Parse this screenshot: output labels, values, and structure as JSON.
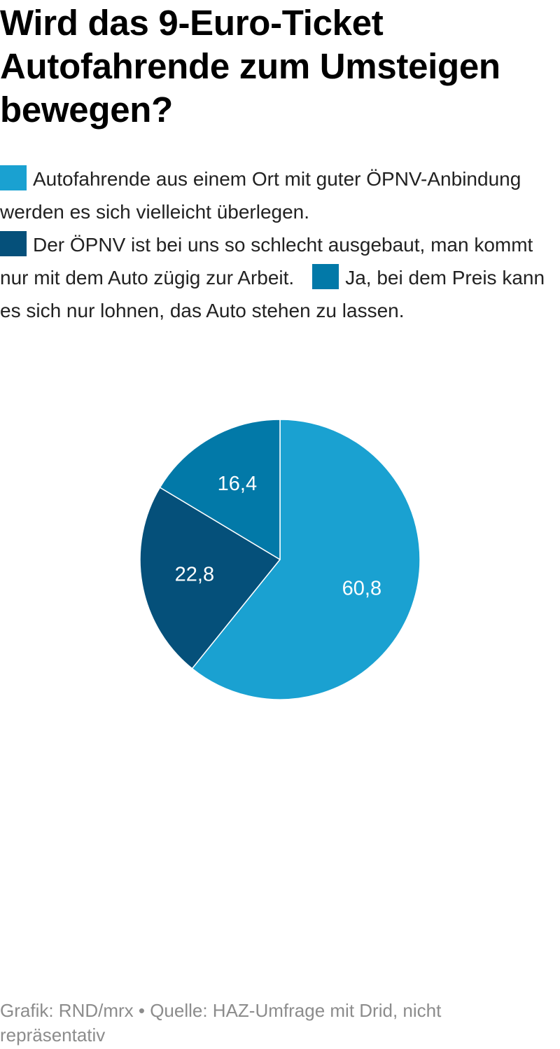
{
  "header": {
    "title": "Wird das 9-Euro-Ticket Autofahrende zum Umsteigen bewegen?"
  },
  "legend": {
    "items": [
      {
        "label": "Autofahrende aus einem Ort mit guter ÖPNV-Anbindung werden es sich vielleicht überlegen.",
        "color": "#1aa1d1"
      },
      {
        "label": "Der ÖPNV ist bei uns so schlecht ausgebaut, man kommt nur mit dem Auto zügig zur Arbeit.",
        "color": "#05507a"
      },
      {
        "label": "Ja, bei dem Preis kann es sich nur lohnen, das Auto stehen zu lassen.",
        "color": "#0279a8"
      }
    ]
  },
  "chart_data": {
    "type": "pie",
    "title": "Wird das 9-Euro-Ticket Autofahrende zum Umsteigen bewegen?",
    "slices": [
      {
        "label": "Autofahrende aus einem Ort mit guter ÖPNV-Anbindung werden es sich vielleicht überlegen.",
        "value": 60.8,
        "display": "60,8",
        "color": "#1aa1d1"
      },
      {
        "label": "Der ÖPNV ist bei uns so schlecht ausgebaut, man kommt nur mit dem Auto zügig zur Arbeit.",
        "value": 22.8,
        "display": "22,8",
        "color": "#05507a"
      },
      {
        "label": "Ja, bei dem Preis kann es sich nur lohnen, das Auto stehen zu lassen.",
        "value": 16.4,
        "display": "16,4",
        "color": "#0279a8"
      }
    ],
    "start_angle": "12 o'clock",
    "direction": "clockwise",
    "legend_position": "top"
  },
  "footer": {
    "text": "Grafik: RND/mrx • Quelle: HAZ-Umfrage mit Drid, nicht repräsentativ"
  }
}
